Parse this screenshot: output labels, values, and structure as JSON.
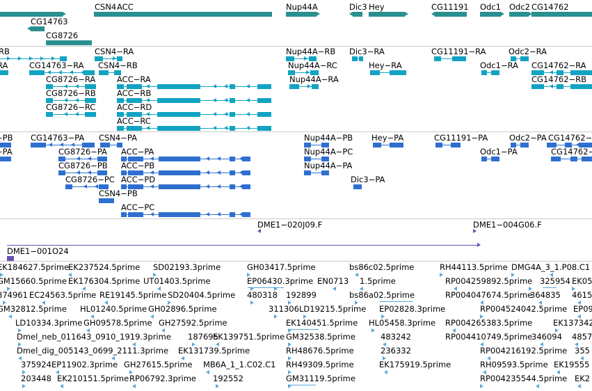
{
  "colors": {
    "gene": "#2a8f8f",
    "mrna": "#12a3c2",
    "cds": "#2e6fd0",
    "bac": "#6a4fb0",
    "est": "#5aaad8",
    "separator": "#c9c9c9"
  },
  "tracks": {
    "genes": [
      {
        "name": "CSN4",
        "label": "CSN4"
      },
      {
        "name": "ACC",
        "label": "ACC"
      },
      {
        "name": "Nup44A",
        "label": "Nup44A"
      },
      {
        "name": "Dic3",
        "label": "Dic3"
      },
      {
        "name": "Hey",
        "label": "Hey"
      },
      {
        "name": "CG11191",
        "label": "CG11191"
      },
      {
        "name": "Odc1",
        "label": "Odc1"
      },
      {
        "name": "Odc2",
        "label": "Odc2"
      },
      {
        "name": "CG14762",
        "label": "CG14762"
      },
      {
        "name": "CG14763",
        "label": "CG14763"
      },
      {
        "name": "CG8726",
        "label": "CG8726"
      }
    ],
    "mrna": [
      {
        "name": "rb-left",
        "label": "RB"
      },
      {
        "name": "ra-left",
        "label": "RA"
      },
      {
        "name": "CG14763-RA",
        "label": "CG14763−RA"
      },
      {
        "name": "CSN4-RA",
        "label": "CSN4−RA"
      },
      {
        "name": "CSN4-RB",
        "label": "CSN4−RB"
      },
      {
        "name": "CG8726-RA",
        "label": "CG8726−RA"
      },
      {
        "name": "CG8726-RB",
        "label": "CG8726−RB"
      },
      {
        "name": "CG8726-RC",
        "label": "CG8726−RC"
      },
      {
        "name": "ACC-RA",
        "label": "ACC−RA"
      },
      {
        "name": "ACC-RB",
        "label": "ACC−RB"
      },
      {
        "name": "ACC-RD",
        "label": "ACC−RD"
      },
      {
        "name": "ACC-RC",
        "label": "ACC−RC"
      },
      {
        "name": "Nup44A-RB",
        "label": "Nup44A−RB"
      },
      {
        "name": "Nup44A-RC",
        "label": "Nup44A−RC"
      },
      {
        "name": "Nup44A-RA",
        "label": "Nup44A−RA"
      },
      {
        "name": "Dic3-RA",
        "label": "Dic3−RA"
      },
      {
        "name": "Hey-RA",
        "label": "Hey−RA"
      },
      {
        "name": "CG11191-RA",
        "label": "CG11191−RA"
      },
      {
        "name": "Odc2-RA",
        "label": "Odc2−RA"
      },
      {
        "name": "Odc1-RA",
        "label": "Odc1−RA"
      },
      {
        "name": "CG14762-RA",
        "label": "CG14762−RA"
      },
      {
        "name": "CG14762-RB",
        "label": "CG14762−RB"
      }
    ],
    "cds": [
      {
        "name": "pb-left",
        "label": "−PB"
      },
      {
        "name": "pa-left",
        "label": "−PA"
      },
      {
        "name": "CG14763-PA",
        "label": "CG14763−PA"
      },
      {
        "name": "CSN4-PA",
        "label": "CSN4−PA"
      },
      {
        "name": "CG8726-PA",
        "label": "CG8726−PA"
      },
      {
        "name": "CG8726-PB",
        "label": "CG8726−PB"
      },
      {
        "name": "CG8726-PC",
        "label": "CG8726−PC"
      },
      {
        "name": "CSN4-PB",
        "label": "CSN4−PB"
      },
      {
        "name": "ACC-PA",
        "label": "ACC−PA"
      },
      {
        "name": "ACC-PB",
        "label": "ACC−PB"
      },
      {
        "name": "ACC-PD",
        "label": "ACC−PD"
      },
      {
        "name": "ACC-PC",
        "label": "ACC−PC"
      },
      {
        "name": "Nup44A-PB",
        "label": "Nup44A−PB"
      },
      {
        "name": "Nup44A-PC",
        "label": "Nup44A−PC"
      },
      {
        "name": "Nup44A-PA",
        "label": "Nup44A−PA"
      },
      {
        "name": "Hey-PA",
        "label": "Hey−PA"
      },
      {
        "name": "Dic3-PA",
        "label": "Dic3−PA"
      },
      {
        "name": "CG11191-PA",
        "label": "CG11191−PA"
      },
      {
        "name": "Odc2-PA",
        "label": "Odc2−PA"
      },
      {
        "name": "Odc1-PA",
        "label": "Odc1−PA"
      },
      {
        "name": "CG14762-PA",
        "label": "CG14762−PA"
      },
      {
        "name": "CG14762-PB",
        "label": "CG14762−"
      }
    ],
    "bac": [
      {
        "name": "DME1-020J09.F",
        "label": "DME1−020J09.F"
      },
      {
        "name": "DME1-004G06.F",
        "label": "DME1−004G06.F"
      },
      {
        "name": "DME1-001O24",
        "label": "DME1−001O24"
      }
    ],
    "est": [
      "EK184627.5prime",
      "EK237524.5prime",
      "SD02193.3prime",
      "GH03417.5prime",
      "bs86c02.5prime",
      "RH44113.5prime",
      "DMG4A_3_1.P08.C1",
      "GM15660.5prime",
      "EK176304.5prime",
      "UT01403.5prime",
      "EP06430.3prime",
      "EN0713",
      "1.5prime",
      "RP004259892.5prime",
      "325954",
      "EK05",
      "874961",
      "EC24563.5prime",
      "RE19145.5prime",
      "SD20404.5prime",
      "480318",
      "192899",
      "bs86a02.5prime",
      "RP004047674.5prime",
      "364835",
      "4615",
      "GM32812.5prime",
      "HL01240.5prime",
      "GH02896.5prime",
      "311306",
      "LD19215.5prime",
      "EP02828.3prime",
      "RP004524042.5prime",
      "EP09",
      "LD10334.3prime",
      "GH09578.5prime",
      "GH27592.5prime",
      "EK140451.5prime",
      "HL05458.3prime",
      "RP004265383.5prime",
      "EK137342.5",
      "Dmel_neb_011643_0910_1919.3prime",
      "187695",
      "EK139751.5prime",
      "GM32538.5prime",
      "483242",
      "RP004410749.5prime",
      "346094",
      "4857",
      "Dmel_dig_005143_0699_2111.3prime",
      "EK131739.5prime",
      "RH48676.5prime",
      "236332",
      "RP004216192.5prime",
      "355",
      "375924",
      "EP11902.3prime",
      "GH27615.5prime",
      "MB6A_1_1.C02.C1",
      "RH49309.5prime",
      "EK175919.5prime",
      "RH09593.5prime",
      "EK19555",
      "203448",
      "EK210151.5prime",
      "RP06792.3prime",
      "192552",
      "GM31119.5prime",
      "RP004235544.5prime",
      "EK2"
    ]
  }
}
